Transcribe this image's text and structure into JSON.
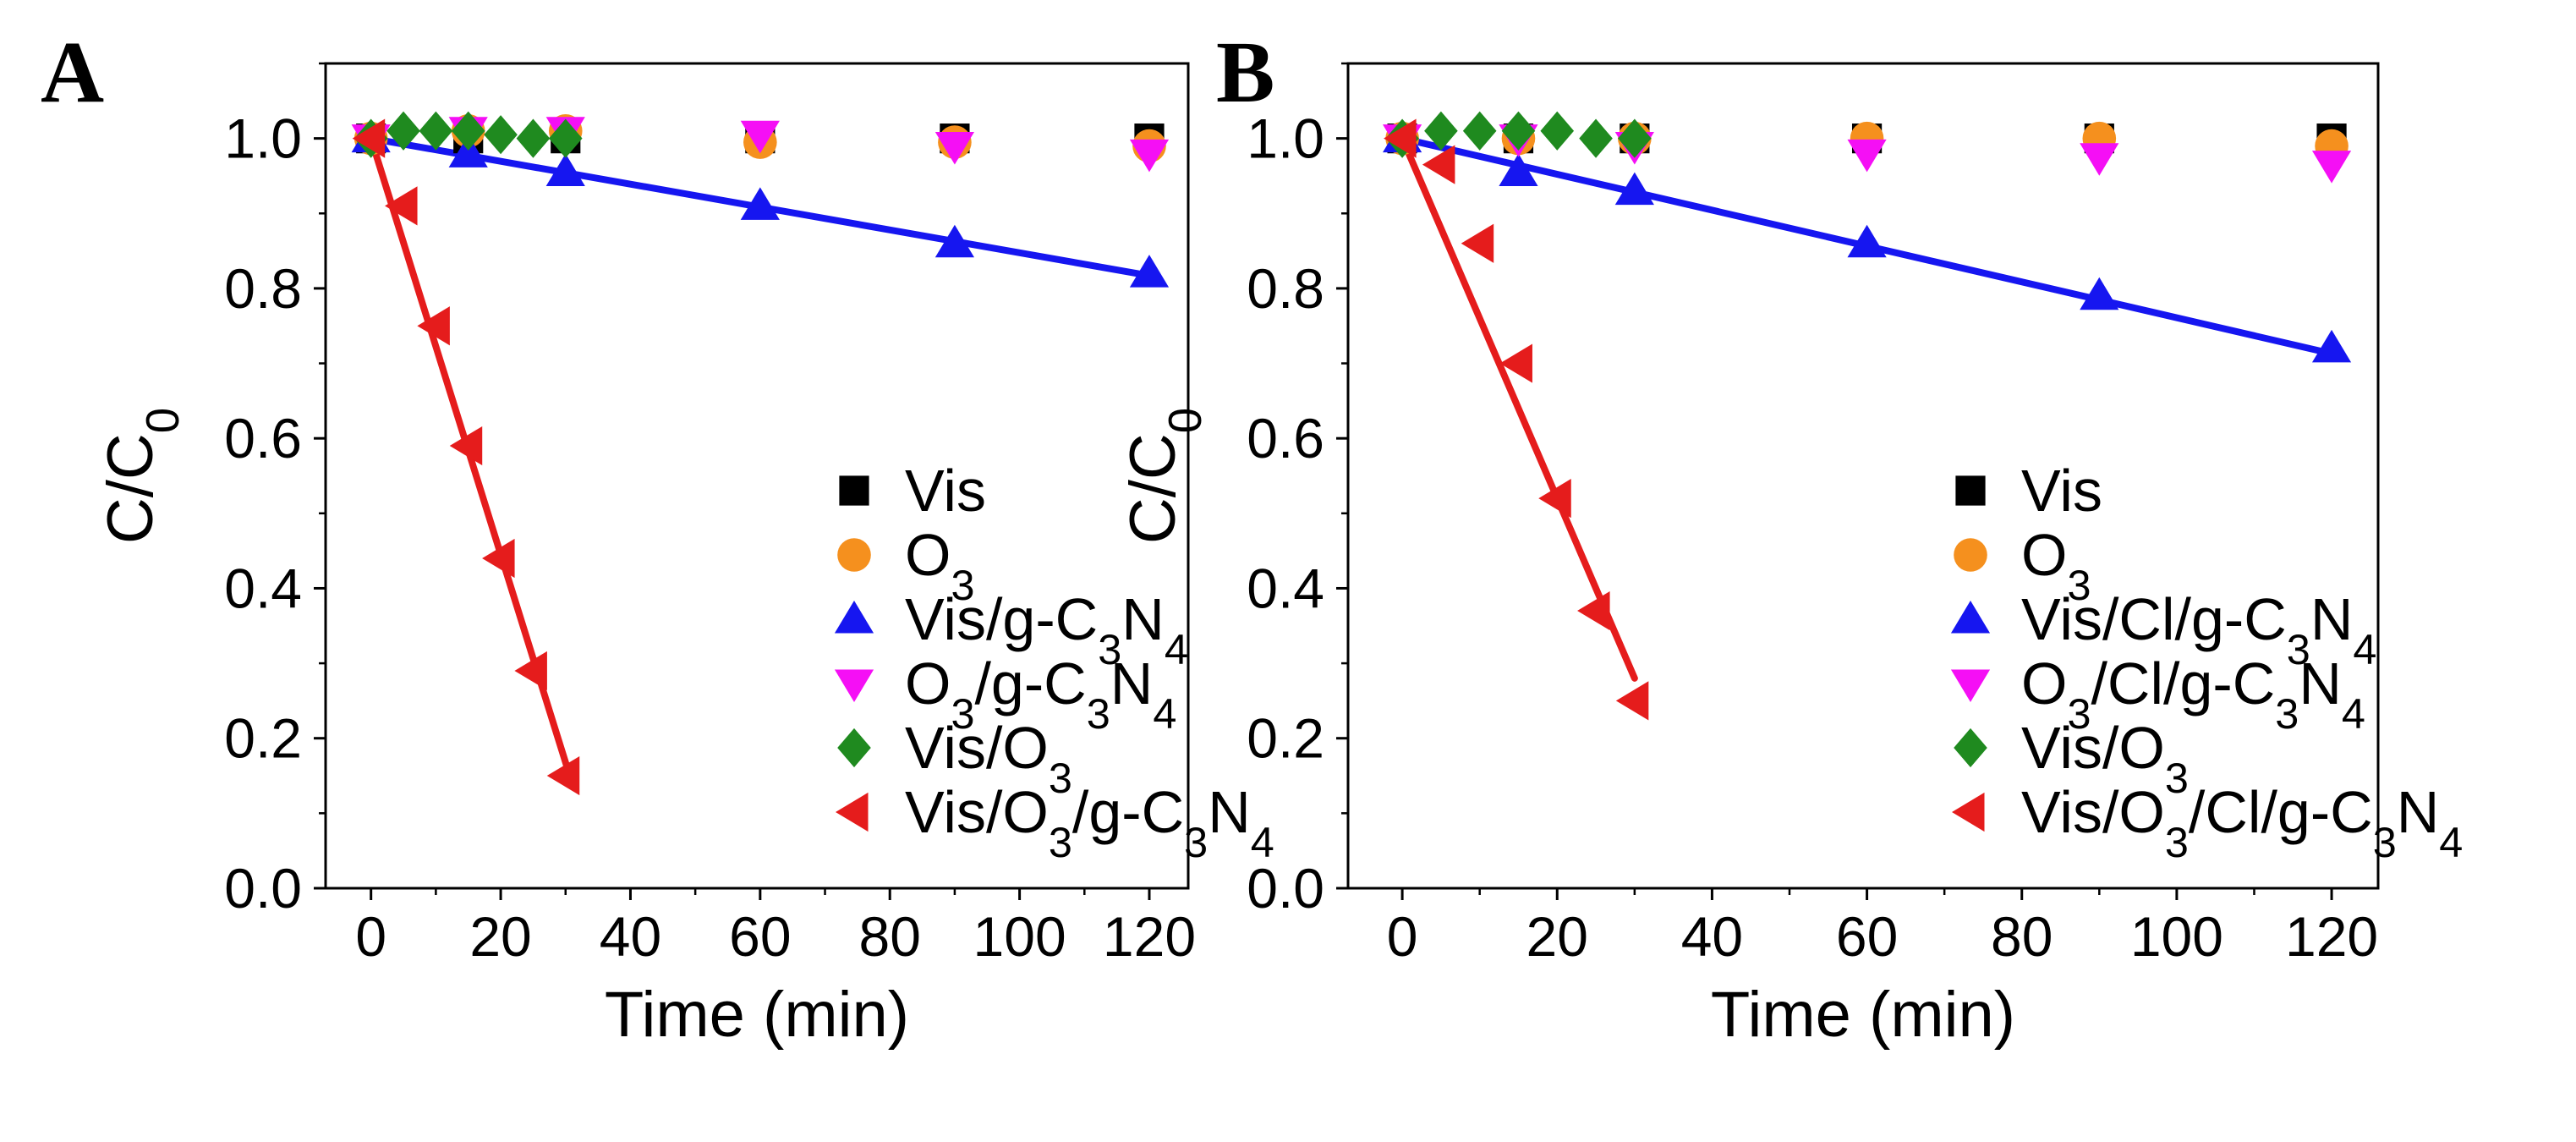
{
  "chart_data": [
    {
      "panel_label": "A",
      "type": "scatter",
      "title": "",
      "xlabel": "Time (min)",
      "ylabel": {
        "base": "C/C",
        "sub": "0"
      },
      "xlim": [
        -7,
        126
      ],
      "ylim": [
        0.0,
        1.1
      ],
      "xticks": [
        0,
        20,
        40,
        60,
        80,
        100,
        120
      ],
      "xtick_labels": [
        "0",
        "20",
        "40",
        "60",
        "80",
        "100",
        "120"
      ],
      "yticks": [
        0.0,
        0.2,
        0.4,
        0.6,
        0.8,
        1.0
      ],
      "ytick_labels": [
        "0.0",
        "0.2",
        "0.4",
        "0.6",
        "0.8",
        "1.0"
      ],
      "grid": false,
      "legend_position": "bottom-right",
      "series": [
        {
          "name": "Vis",
          "label_parts": [
            [
              "Vis",
              ""
            ]
          ],
          "marker": "square",
          "color": "#000000",
          "x": [
            0,
            15,
            30,
            60,
            90,
            120
          ],
          "y": [
            1.0,
            1.0,
            1.0,
            1.0,
            1.0,
            1.0
          ]
        },
        {
          "name": "O3",
          "label_parts": [
            [
              "O",
              ""
            ],
            [
              "3",
              "sub"
            ]
          ],
          "marker": "circle",
          "color": "#f5901e",
          "x": [
            0,
            15,
            30,
            60,
            90,
            120
          ],
          "y": [
            1.0,
            1.01,
            1.01,
            0.995,
            0.995,
            0.99
          ]
        },
        {
          "name": "Vis/g-C3N4",
          "label_parts": [
            [
              "Vis/g-C",
              ""
            ],
            [
              "3",
              "sub"
            ],
            [
              "N",
              ""
            ],
            [
              "4",
              "sub"
            ]
          ],
          "marker": "triangle-up",
          "color": "#1616f0",
          "x": [
            0,
            15,
            30,
            60,
            90,
            120
          ],
          "y": [
            1.0,
            0.98,
            0.955,
            0.91,
            0.86,
            0.82
          ],
          "fit": {
            "x": [
              0,
              120
            ],
            "y": [
              1.0,
              0.817
            ]
          }
        },
        {
          "name": "O3/g-C3N4",
          "label_parts": [
            [
              "O",
              ""
            ],
            [
              "3",
              "sub"
            ],
            [
              "/g-C",
              ""
            ],
            [
              "3",
              "sub"
            ],
            [
              "N",
              ""
            ],
            [
              "4",
              "sub"
            ]
          ],
          "marker": "triangle-down",
          "color": "#f50ff5",
          "x": [
            0,
            15,
            30,
            60,
            90,
            120
          ],
          "y": [
            1.0,
            1.01,
            1.01,
            1.005,
            0.99,
            0.98
          ]
        },
        {
          "name": "Vis/O3",
          "label_parts": [
            [
              "Vis/O",
              ""
            ],
            [
              "3",
              "sub"
            ]
          ],
          "marker": "diamond",
          "color": "#1f8a1f",
          "x": [
            0,
            5,
            10,
            15,
            20,
            25,
            30
          ],
          "y": [
            1.0,
            1.01,
            1.01,
            1.01,
            1.005,
            1.0,
            1.0
          ]
        },
        {
          "name": "Vis/O3/g-C3N4",
          "label_parts": [
            [
              "Vis/O",
              ""
            ],
            [
              "3",
              "sub"
            ],
            [
              "/g-C",
              ""
            ],
            [
              "3",
              "sub"
            ],
            [
              "N",
              ""
            ],
            [
              "4",
              "sub"
            ]
          ],
          "marker": "triangle-left",
          "color": "#e51c1c",
          "x": [
            0,
            5,
            10,
            15,
            20,
            25,
            30
          ],
          "y": [
            1.0,
            0.91,
            0.75,
            0.59,
            0.44,
            0.29,
            0.15
          ],
          "fit": {
            "x": [
              0,
              31
            ],
            "y": [
              1.0,
              0.14
            ]
          }
        }
      ]
    },
    {
      "panel_label": "B",
      "type": "scatter",
      "title": "",
      "xlabel": "Time (min)",
      "ylabel": {
        "base": "C/C",
        "sub": "0"
      },
      "xlim": [
        -7,
        126
      ],
      "ylim": [
        0.0,
        1.1
      ],
      "xticks": [
        0,
        20,
        40,
        60,
        80,
        100,
        120
      ],
      "xtick_labels": [
        "0",
        "20",
        "40",
        "60",
        "80",
        "100",
        "120"
      ],
      "yticks": [
        0.0,
        0.2,
        0.4,
        0.6,
        0.8,
        1.0
      ],
      "ytick_labels": [
        "0.0",
        "0.2",
        "0.4",
        "0.6",
        "0.8",
        "1.0"
      ],
      "grid": false,
      "legend_position": "bottom-right",
      "series": [
        {
          "name": "Vis",
          "label_parts": [
            [
              "Vis",
              ""
            ]
          ],
          "marker": "square",
          "color": "#000000",
          "x": [
            0,
            15,
            30,
            60,
            90,
            120
          ],
          "y": [
            1.0,
            1.0,
            1.0,
            1.0,
            1.0,
            1.0
          ]
        },
        {
          "name": "O3",
          "label_parts": [
            [
              "O",
              ""
            ],
            [
              "3",
              "sub"
            ]
          ],
          "marker": "circle",
          "color": "#f5901e",
          "x": [
            0,
            15,
            30,
            60,
            90,
            120
          ],
          "y": [
            1.0,
            1.0,
            1.0,
            1.0,
            1.0,
            0.99
          ]
        },
        {
          "name": "Vis/Cl/g-C3N4",
          "label_parts": [
            [
              "Vis/Cl/g-C",
              ""
            ],
            [
              "3",
              "sub"
            ],
            [
              "N",
              ""
            ],
            [
              "4",
              "sub"
            ]
          ],
          "marker": "triangle-up",
          "color": "#1616f0",
          "x": [
            0,
            15,
            30,
            60,
            90,
            120
          ],
          "y": [
            1.0,
            0.955,
            0.93,
            0.86,
            0.79,
            0.72
          ],
          "fit": {
            "x": [
              0,
              120
            ],
            "y": [
              1.0,
              0.713
            ]
          }
        },
        {
          "name": "O3/Cl/g-C3N4",
          "label_parts": [
            [
              "O",
              ""
            ],
            [
              "3",
              "sub"
            ],
            [
              "/Cl/g-C",
              ""
            ],
            [
              "3",
              "sub"
            ],
            [
              "N",
              ""
            ],
            [
              "4",
              "sub"
            ]
          ],
          "marker": "triangle-down",
          "color": "#f50ff5",
          "x": [
            0,
            15,
            30,
            60,
            90,
            120
          ],
          "y": [
            1.0,
            1.0,
            0.99,
            0.98,
            0.975,
            0.965
          ]
        },
        {
          "name": "Vis/O3",
          "label_parts": [
            [
              "Vis/O",
              ""
            ],
            [
              "3",
              "sub"
            ]
          ],
          "marker": "diamond",
          "color": "#1f8a1f",
          "x": [
            0,
            5,
            10,
            15,
            20,
            25,
            30
          ],
          "y": [
            1.0,
            1.01,
            1.01,
            1.01,
            1.01,
            1.0,
            1.0
          ]
        },
        {
          "name": "Vis/O3/Cl/g-C3N4",
          "label_parts": [
            [
              "Vis/O",
              ""
            ],
            [
              "3",
              "sub"
            ],
            [
              "/Cl/g-C",
              ""
            ],
            [
              "3",
              "sub"
            ],
            [
              "N",
              ""
            ],
            [
              "4",
              "sub"
            ]
          ],
          "marker": "triangle-left",
          "color": "#e51c1c",
          "x": [
            0,
            5,
            10,
            15,
            20,
            25,
            30
          ],
          "y": [
            1.0,
            0.965,
            0.86,
            0.7,
            0.52,
            0.37,
            0.25
          ],
          "fit": {
            "x": [
              0,
              30
            ],
            "y": [
              1.0,
              0.28
            ]
          }
        }
      ]
    }
  ]
}
